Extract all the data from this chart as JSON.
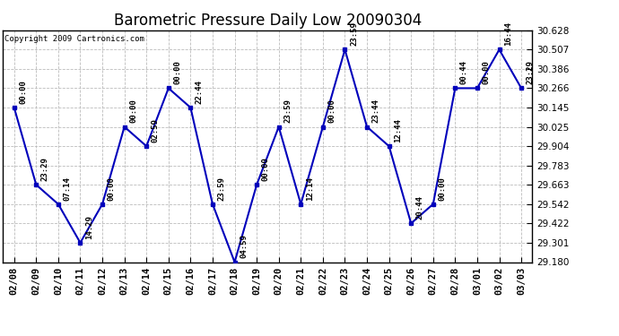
{
  "title": "Barometric Pressure Daily Low 20090304",
  "copyright": "Copyright 2009 Cartronics.com",
  "dates": [
    "02/08",
    "02/09",
    "02/10",
    "02/11",
    "02/12",
    "02/13",
    "02/14",
    "02/15",
    "02/16",
    "02/17",
    "02/18",
    "02/19",
    "02/20",
    "02/21",
    "02/22",
    "02/23",
    "02/24",
    "02/25",
    "02/26",
    "02/27",
    "02/28",
    "03/01",
    "03/02",
    "03/03"
  ],
  "values": [
    30.145,
    29.663,
    29.542,
    29.301,
    29.542,
    30.025,
    29.904,
    30.266,
    30.145,
    29.542,
    29.18,
    29.663,
    30.025,
    29.542,
    30.025,
    30.507,
    30.025,
    29.904,
    29.422,
    29.542,
    30.266,
    30.266,
    30.507,
    30.266
  ],
  "labels": [
    "00:00",
    "23:29",
    "07:14",
    "14:29",
    "00:00",
    "00:00",
    "02:59",
    "00:00",
    "22:44",
    "23:59",
    "04:59",
    "00:00",
    "23:59",
    "12:14",
    "00:00",
    "23:59",
    "23:44",
    "12:44",
    "20:44",
    "00:00",
    "00:44",
    "00:00",
    "16:44",
    "23:29"
  ],
  "ylim": [
    29.18,
    30.628
  ],
  "yticks": [
    29.18,
    29.301,
    29.422,
    29.542,
    29.663,
    29.783,
    29.904,
    30.025,
    30.145,
    30.266,
    30.386,
    30.507,
    30.628
  ],
  "line_color": "#0000BB",
  "marker_color": "#0000BB",
  "bg_color": "#FFFFFF",
  "grid_color": "#BBBBBB",
  "title_fontsize": 12,
  "label_fontsize": 6.5,
  "tick_fontsize": 7.5,
  "copyright_fontsize": 6.5
}
